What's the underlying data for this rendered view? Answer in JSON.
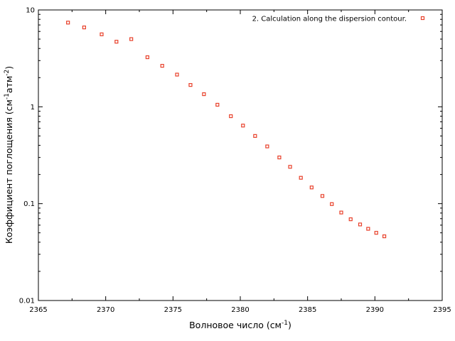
{
  "chart_data": {
    "type": "scatter",
    "xlim": [
      2365,
      2395
    ],
    "ylim": [
      0.01,
      10
    ],
    "y_scale": "log",
    "x_ticks": [
      "2365",
      "2370",
      "2375",
      "2380",
      "2385",
      "2390",
      "2395"
    ],
    "y_ticks": [
      "0.01",
      "0.1",
      "1",
      "10"
    ],
    "xlabel": {
      "main": "Волновое число (см",
      "sup": "-1",
      "tail": ")"
    },
    "ylabel": {
      "main": "Коэффициент поглощения (см",
      "sup1": "-1",
      "mid": "атм",
      "sup2": "-2",
      "tail": ")"
    },
    "legend_position": "top-right",
    "grid": false,
    "marker_color": "#e8402a",
    "series": [
      {
        "name": "2. Calculation along the dispersion contour.",
        "points": [
          [
            2367.2,
            7.4
          ],
          [
            2368.4,
            6.6
          ],
          [
            2369.7,
            5.6
          ],
          [
            2370.8,
            4.7
          ],
          [
            2371.9,
            5.0
          ],
          [
            2373.1,
            3.25
          ],
          [
            2374.2,
            2.65
          ],
          [
            2375.3,
            2.15
          ],
          [
            2376.3,
            1.68
          ],
          [
            2377.3,
            1.35
          ],
          [
            2378.3,
            1.05
          ],
          [
            2379.3,
            0.8
          ],
          [
            2380.2,
            0.64
          ],
          [
            2381.1,
            0.5
          ],
          [
            2382.0,
            0.39
          ],
          [
            2382.9,
            0.3
          ],
          [
            2383.7,
            0.24
          ],
          [
            2384.5,
            0.185
          ],
          [
            2385.3,
            0.147
          ],
          [
            2386.1,
            0.12
          ],
          [
            2386.8,
            0.099
          ],
          [
            2387.5,
            0.081
          ],
          [
            2388.2,
            0.069
          ],
          [
            2388.9,
            0.061
          ],
          [
            2389.5,
            0.055
          ],
          [
            2390.1,
            0.05
          ],
          [
            2390.7,
            0.046
          ]
        ]
      }
    ]
  }
}
